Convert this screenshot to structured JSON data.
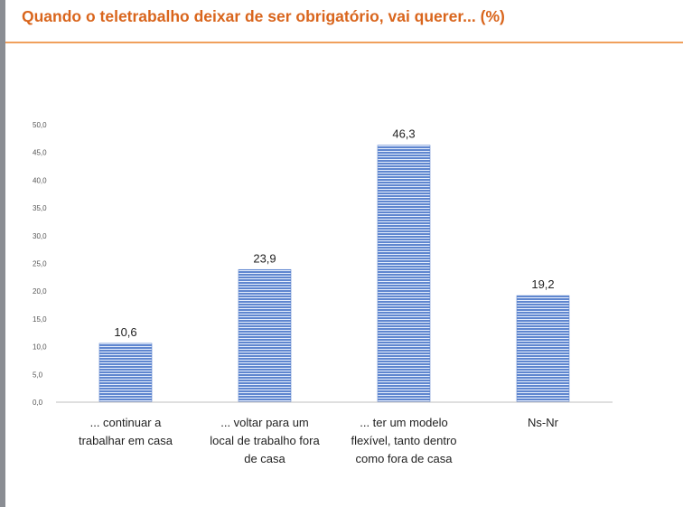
{
  "header": {
    "title": "Quando o teletrabalho deixar de ser obrigatório, vai querer... (%)"
  },
  "colors": {
    "title": "#d9651c",
    "bar": "#5f86cf",
    "bar_stripe": "#e6eefc",
    "axis": "#bfbfbf"
  },
  "chart_data": {
    "type": "bar",
    "title": "Quando o teletrabalho deixar de ser obrigatório, vai querer... (%)",
    "categories": [
      [
        "... continuar a",
        "trabalhar em casa"
      ],
      [
        "... voltar para um",
        "local de trabalho fora",
        "de casa"
      ],
      [
        "... ter um modelo",
        "flexível, tanto dentro",
        "como fora de casa"
      ],
      [
        "Ns-Nr"
      ]
    ],
    "values": [
      10.6,
      23.9,
      46.3,
      19.2
    ],
    "value_labels": [
      "10,6",
      "23,9",
      "46,3",
      "19,2"
    ],
    "ylim": [
      0,
      50
    ],
    "yticks": [
      "0,0",
      "5,0",
      "10,0",
      "15,0",
      "20,0",
      "25,0",
      "30,0",
      "35,0",
      "40,0",
      "45,0",
      "50,0"
    ],
    "xlabel": "",
    "ylabel": "",
    "grid": false
  }
}
